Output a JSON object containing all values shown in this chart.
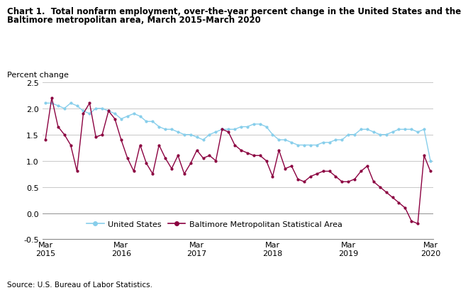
{
  "title_line1": "Chart 1.  Total nonfarm employment, over-the-year percent change in the United States and the",
  "title_line2": "Baltimore metropolitan area, March 2015-March 2020",
  "ylabel": "Percent change",
  "source": "Source: U.S. Bureau of Labor Statistics.",
  "ylim": [
    -0.5,
    2.5
  ],
  "yticks": [
    -0.5,
    0.0,
    0.5,
    1.0,
    1.5,
    2.0,
    2.5
  ],
  "legend_us": "United States",
  "legend_balt": "Baltimore Metropolitan Statistical Area",
  "us_color": "#87CEEB",
  "balt_color": "#8B0040",
  "us_data": [
    2.1,
    2.1,
    2.05,
    2.0,
    2.1,
    2.05,
    1.95,
    1.9,
    2.0,
    2.0,
    1.95,
    1.9,
    1.8,
    1.85,
    1.9,
    1.85,
    1.75,
    1.75,
    1.65,
    1.6,
    1.6,
    1.55,
    1.5,
    1.5,
    1.45,
    1.4,
    1.5,
    1.55,
    1.6,
    1.6,
    1.6,
    1.65,
    1.65,
    1.7,
    1.7,
    1.65,
    1.5,
    1.4,
    1.4,
    1.35,
    1.3,
    1.3,
    1.3,
    1.3,
    1.35,
    1.35,
    1.4,
    1.4,
    1.5,
    1.5,
    1.6,
    1.6,
    1.55,
    1.5,
    1.5,
    1.55,
    1.6,
    1.6,
    1.6,
    1.55,
    1.6,
    1.0
  ],
  "balt_data": [
    1.4,
    2.2,
    1.65,
    1.5,
    1.3,
    0.8,
    1.9,
    2.1,
    1.45,
    1.5,
    1.95,
    1.8,
    1.4,
    1.05,
    0.8,
    1.3,
    0.95,
    0.75,
    1.3,
    1.05,
    0.85,
    1.1,
    0.75,
    0.95,
    1.2,
    1.05,
    1.1,
    1.0,
    1.6,
    1.55,
    1.3,
    1.2,
    1.15,
    1.1,
    1.1,
    1.0,
    0.7,
    1.2,
    0.85,
    0.9,
    0.65,
    0.6,
    0.7,
    0.75,
    0.8,
    0.8,
    0.7,
    0.6,
    0.6,
    0.65,
    0.8,
    0.9,
    0.6,
    0.5,
    0.4,
    0.3,
    0.2,
    0.1,
    -0.15,
    -0.2,
    1.1,
    0.8
  ],
  "xtick_positions": [
    0,
    12,
    24,
    36,
    48,
    61
  ],
  "xtick_labels": [
    "Mar\n2015",
    "Mar\n2016",
    "Mar\n2017",
    "Mar\n2018",
    "Mar\n2019",
    "Mar\n2020"
  ]
}
